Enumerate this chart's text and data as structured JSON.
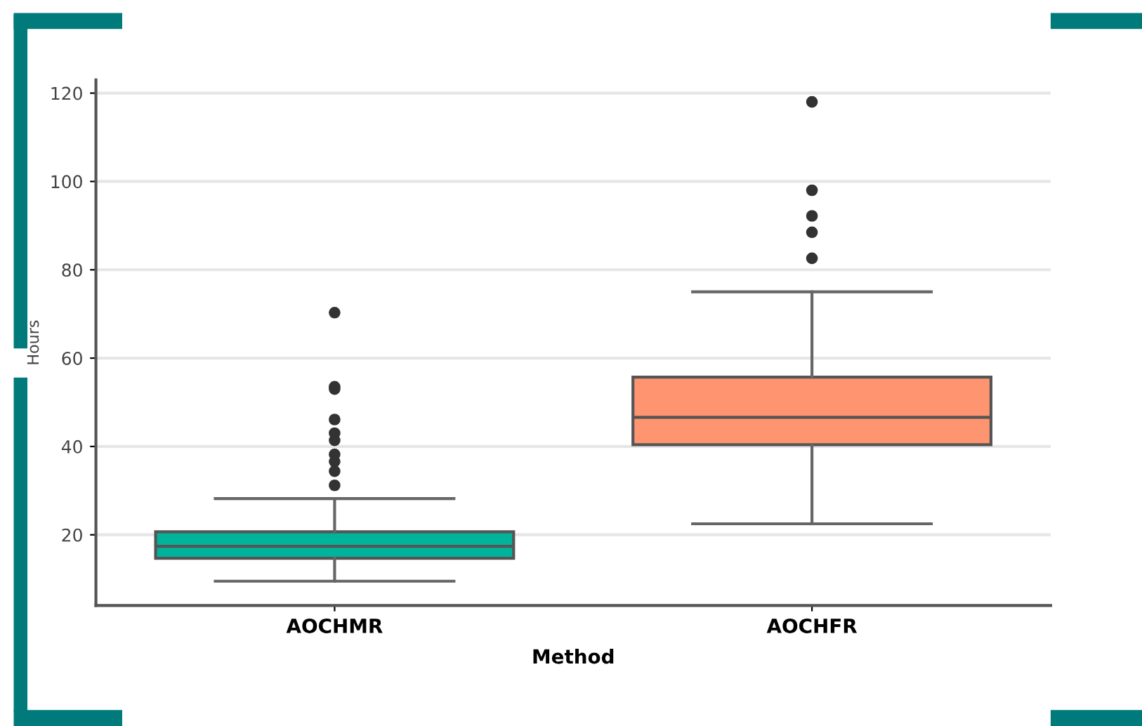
{
  "chart_data": {
    "type": "box",
    "xlabel": "Method",
    "ylabel": "Hours",
    "categories": [
      "AOCHMR",
      "AOCHFR"
    ],
    "colors": [
      "#00b39b",
      "#ff9470"
    ],
    "boxes": [
      {
        "low": 9.5,
        "q1": 14.7,
        "median": 17.4,
        "q3": 20.7,
        "high": 28.2,
        "outliers": [
          70.3,
          53.5,
          53,
          46.1,
          43,
          41.4,
          38.2,
          36.6,
          34.4,
          31.2
        ]
      },
      {
        "low": 22.5,
        "q1": 40.4,
        "median": 46.6,
        "q3": 55.7,
        "high": 75,
        "outliers": [
          118,
          98,
          92.2,
          88.5,
          82.6
        ]
      }
    ],
    "ylim": [
      4,
      123
    ],
    "yticks": [
      20,
      40,
      60,
      80,
      100,
      120
    ],
    "grid": "y"
  }
}
